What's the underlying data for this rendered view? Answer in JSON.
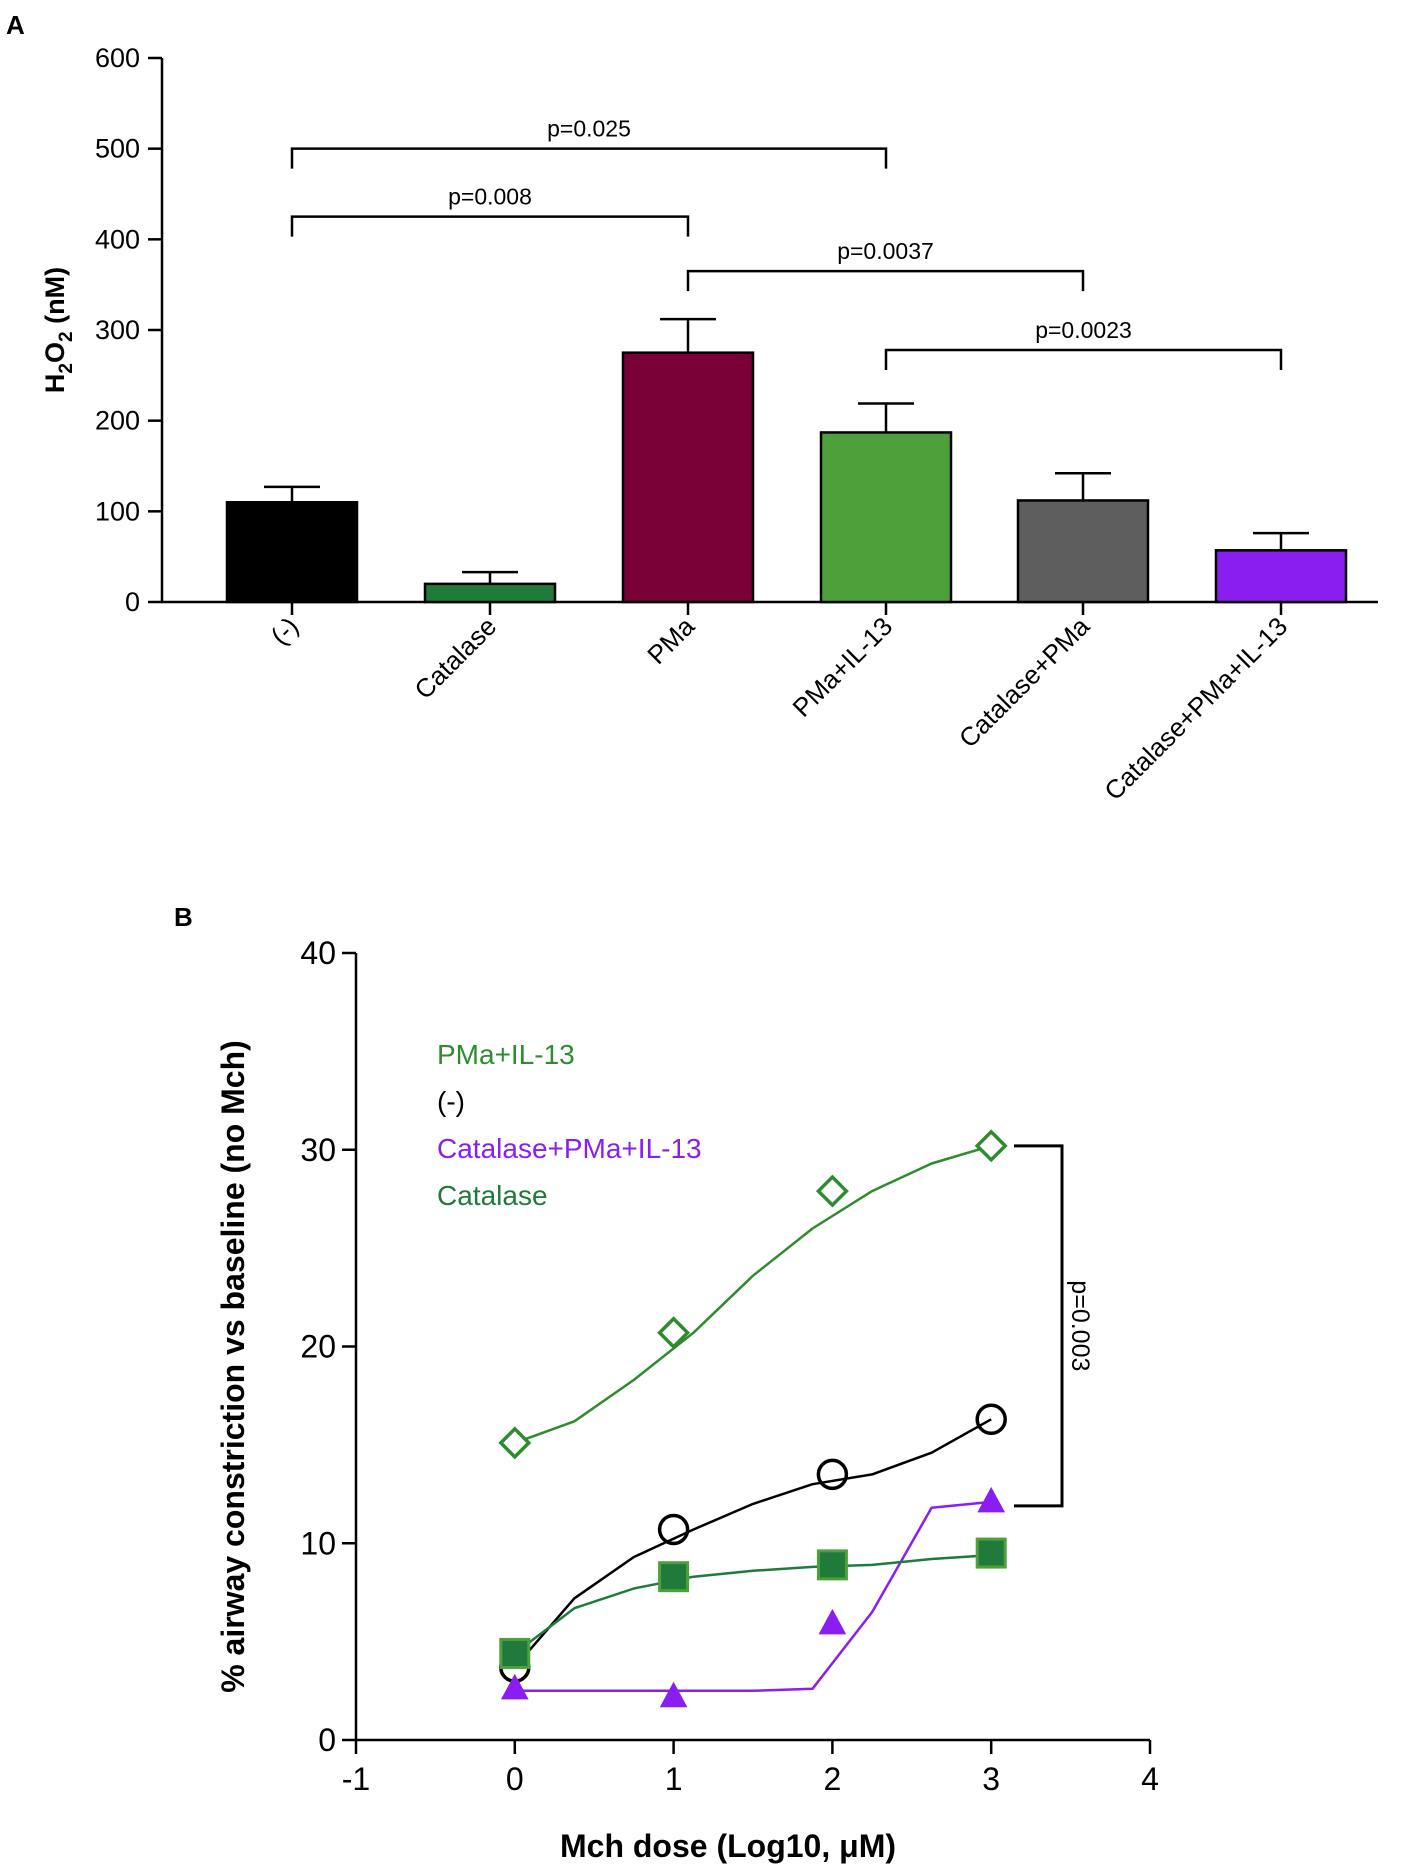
{
  "chart_data": [
    {
      "panel_label": "A",
      "type": "bar",
      "title": "",
      "xlabel": "",
      "ylabel": "H2O2 (nM)",
      "ylabel_parts": [
        "H",
        "2",
        "O",
        "2",
        " (nM)"
      ],
      "ylim": [
        0,
        600
      ],
      "yticks": [
        0,
        100,
        200,
        300,
        400,
        500,
        600
      ],
      "grid": false,
      "legend": "none",
      "categories": [
        "(-)",
        "Catalase",
        "PMa",
        "PMa+IL-13",
        "Catalase+PMa",
        "Catalase+PMa+IL-13"
      ],
      "values": [
        110,
        20,
        275,
        187,
        112,
        57
      ],
      "errors": [
        17,
        13,
        37,
        32,
        30,
        19
      ],
      "colors": [
        "#000000",
        "#1f7a3c",
        "#7a0038",
        "#4ea03a",
        "#5e5e5e",
        "#8a1ef0"
      ],
      "annotations": [
        {
          "text": "p=0.025",
          "from": 0,
          "to": 3,
          "y": 500
        },
        {
          "text": "p=0.008",
          "from": 0,
          "to": 2,
          "y": 425
        },
        {
          "text": "p=0.0037",
          "from": 2,
          "to": 4,
          "y": 365
        },
        {
          "text": "p=0.0023",
          "from": 3,
          "to": 5,
          "y": 278
        }
      ]
    },
    {
      "panel_label": "B",
      "type": "scatter",
      "title": "",
      "xlabel": "Mch dose (Log10, μM)",
      "ylabel": "% airway constriction vs baseline (no Mch)",
      "xlim": [
        -1,
        4
      ],
      "ylim": [
        0,
        40
      ],
      "xticks": [
        -1,
        0,
        1,
        2,
        3,
        4
      ],
      "yticks": [
        0,
        10,
        20,
        30,
        40
      ],
      "grid": false,
      "legend": "top-left",
      "x": [
        0,
        1,
        2,
        3
      ],
      "series": [
        {
          "name": "PMa+IL-13",
          "values": [
            15.1,
            20.7,
            27.9,
            30.2
          ],
          "color": "#2e8b2e",
          "marker": "diamond-open",
          "curve": [
            15.1,
            16.2,
            18.3,
            20.7,
            23.6,
            26.0,
            27.9,
            29.3,
            30.2
          ]
        },
        {
          "name": "(-)",
          "values": [
            3.7,
            10.7,
            13.5,
            16.3
          ],
          "color": "#000000",
          "marker": "circle-open",
          "curve": [
            3.7,
            7.2,
            9.3,
            10.7,
            12.0,
            13.0,
            13.5,
            14.6,
            16.3
          ]
        },
        {
          "name": "Catalase+PMa+IL-13",
          "values": [
            2.6,
            2.2,
            5.9,
            12.1
          ],
          "color": "#8a1ef0",
          "marker": "triangle",
          "curve": [
            2.5,
            2.5,
            2.5,
            2.5,
            2.5,
            2.6,
            6.5,
            11.8,
            12.1
          ]
        },
        {
          "name": "Catalase",
          "values": [
            4.4,
            8.3,
            8.9,
            9.5
          ],
          "color": "#1f7a3c",
          "marker": "square",
          "curve": [
            4.4,
            6.7,
            7.7,
            8.3,
            8.6,
            8.8,
            8.9,
            9.2,
            9.4
          ]
        }
      ],
      "annotations": [
        {
          "text": "p=0.003",
          "y_top": 30.2,
          "y_bottom": 11.9
        }
      ]
    }
  ]
}
